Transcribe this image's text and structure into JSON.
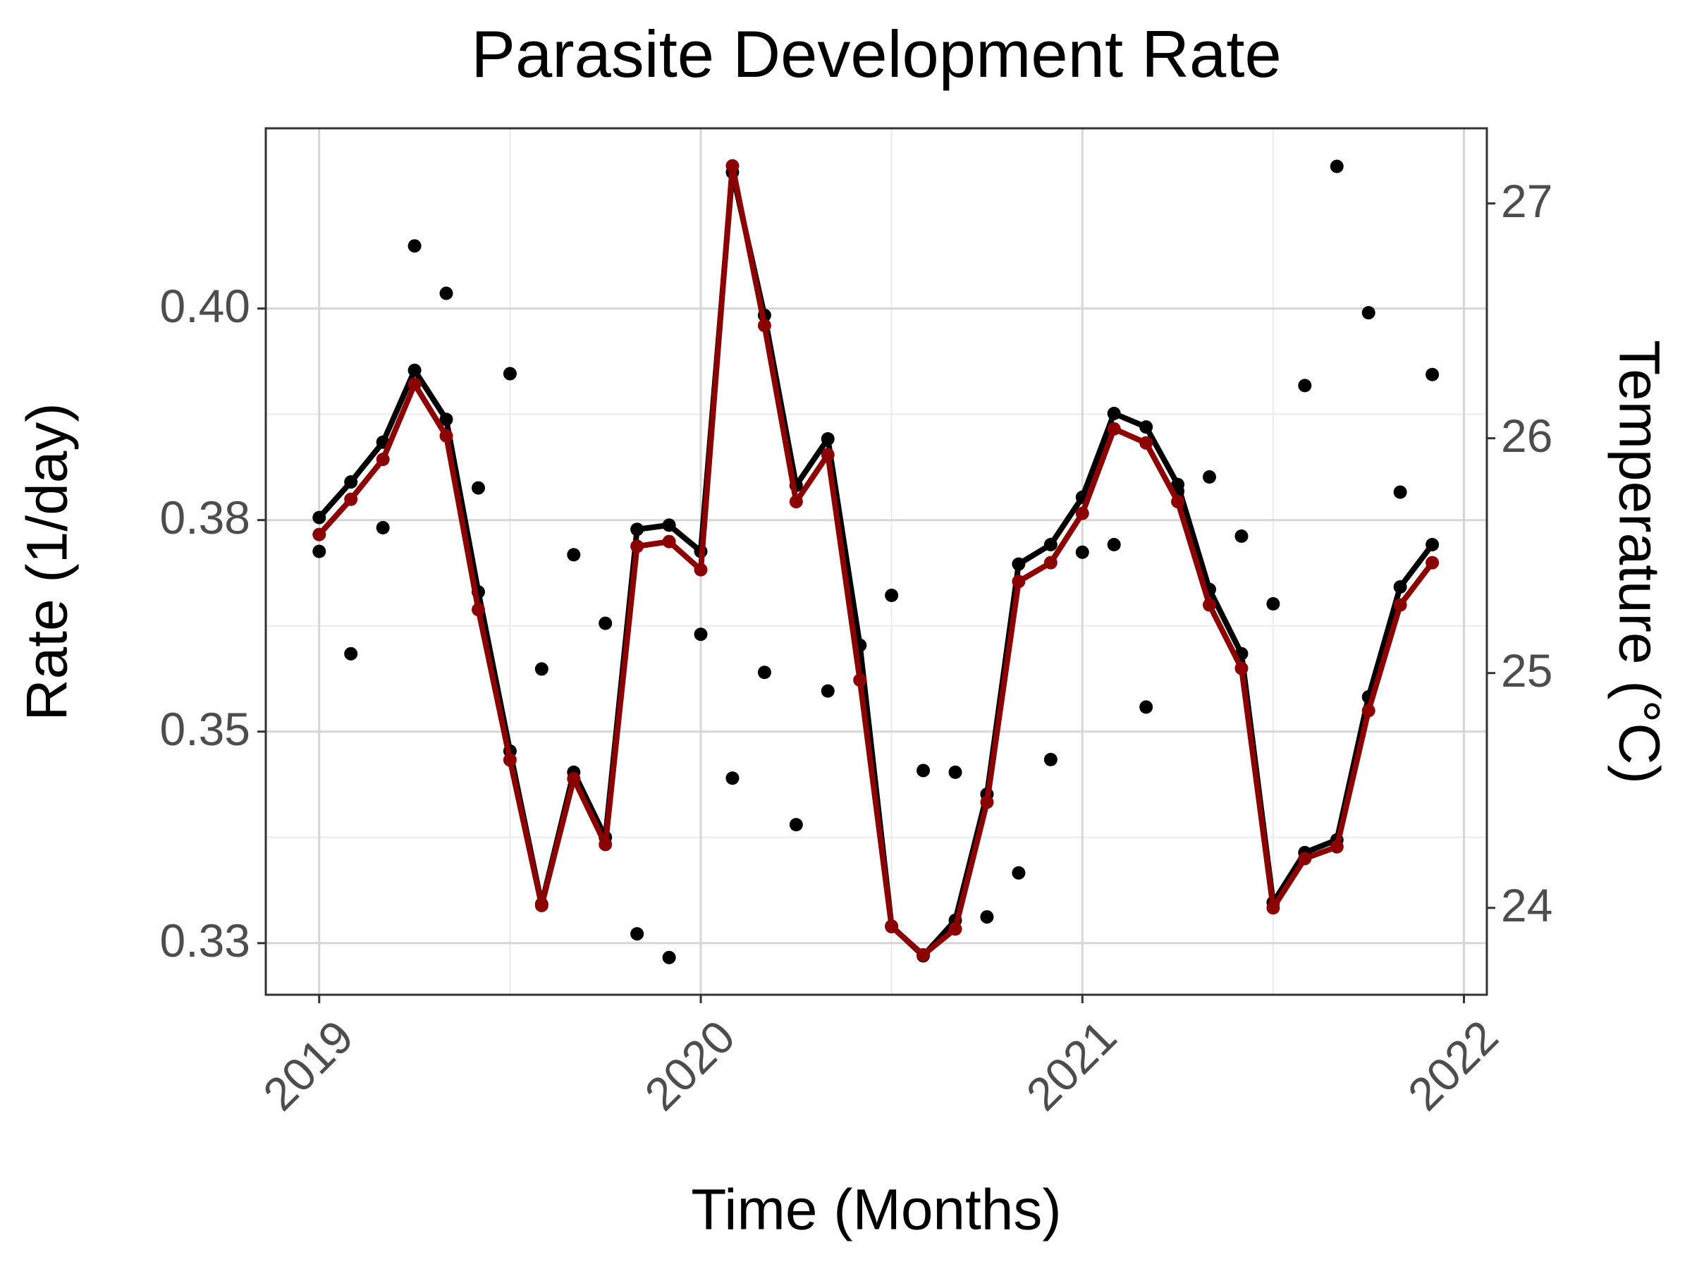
{
  "chart_data": {
    "type": "line",
    "title": "Parasite Development Rate",
    "xlabel": "Time (Months)",
    "ylabel": "Rate (1/day)",
    "y2label": "Temperature (°C)",
    "y2label_color": "#8b0000",
    "x": [
      2019,
      2019.083,
      2019.167,
      2019.25,
      2019.333,
      2019.417,
      2019.5,
      2019.583,
      2019.667,
      2019.75,
      2019.833,
      2019.917,
      2020,
      2020.083,
      2020.167,
      2020.25,
      2020.333,
      2020.417,
      2020.5,
      2020.583,
      2020.667,
      2020.75,
      2020.833,
      2020.917,
      2021,
      2021.083,
      2021.167,
      2021.25,
      2021.333,
      2021.417,
      2021.5,
      2021.583,
      2021.667,
      2021.75,
      2021.833,
      2021.917
    ],
    "xlim": [
      2018.86,
      2022.06
    ],
    "xticks": [
      2019,
      2020,
      2021,
      2022
    ],
    "ylim": [
      0.3189,
      0.4213
    ],
    "yticks": [
      {
        "value": 0.4,
        "label": "0.40"
      },
      {
        "value": 0.375,
        "label": "0.38"
      },
      {
        "value": 0.35,
        "label": "0.35"
      },
      {
        "value": 0.325,
        "label": "0.33"
      }
    ],
    "y2lim": [
      23.63,
      27.32
    ],
    "y2ticks": [
      27,
      26,
      25,
      24
    ],
    "grid": true,
    "minor_grid": true,
    "series": [
      {
        "color": "#000000",
        "style": "points",
        "values": [
          0.3713,
          0.3592,
          0.3741,
          0.4074,
          0.4018,
          0.3788,
          0.3923,
          0.3574,
          0.3709,
          0.3628,
          0.3261,
          0.3233,
          0.3615,
          0.3445,
          0.357,
          0.339,
          0.3548,
          0.3602,
          0.3661,
          0.3454,
          0.3452,
          0.3281,
          0.3333,
          0.3467,
          0.3712,
          0.3721,
          0.3529,
          0.3784,
          0.3801,
          0.3731,
          0.3651,
          0.3909,
          0.4168,
          0.3995,
          0.3783,
          0.3922
        ]
      },
      {
        "color": "#000000",
        "style": "line",
        "values": [
          0.3753,
          0.3795,
          0.3842,
          0.3927,
          0.3869,
          0.3665,
          0.3477,
          0.3296,
          0.3452,
          0.3375,
          0.3739,
          0.3744,
          0.3713,
          0.4161,
          0.3992,
          0.3791,
          0.3846,
          0.3602,
          0.327,
          0.3235,
          0.3277,
          0.3426,
          0.3698,
          0.3721,
          0.3777,
          0.3876,
          0.386,
          0.3792,
          0.3668,
          0.3592,
          0.3298,
          0.3357,
          0.3372,
          0.3541,
          0.3671,
          0.3721
        ]
      },
      {
        "color": "#8b0000",
        "style": "line",
        "axis": "y2",
        "values": [
          25.59,
          25.74,
          25.91,
          26.23,
          26.01,
          25.27,
          24.63,
          24.01,
          24.55,
          24.27,
          25.54,
          25.56,
          25.44,
          27.16,
          26.48,
          25.73,
          25.93,
          24.97,
          23.92,
          23.8,
          23.91,
          24.45,
          25.39,
          25.47,
          25.68,
          26.04,
          25.98,
          25.73,
          25.29,
          25.02,
          24.0,
          24.21,
          24.26,
          24.84,
          25.29,
          25.47
        ]
      }
    ]
  }
}
